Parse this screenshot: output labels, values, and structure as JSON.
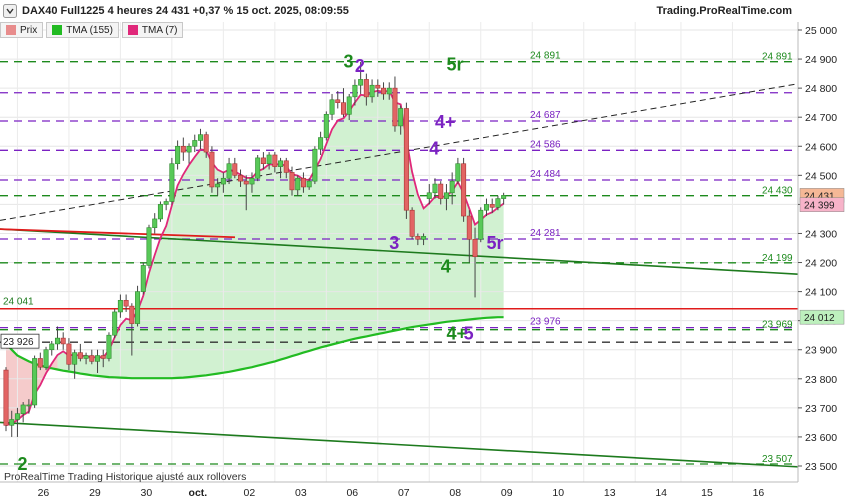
{
  "header": {
    "title": "DAX40 Full1225 4 heures 24 431 +0,37 % 15 oct. 2025, 08:09:55",
    "source": "Trading.ProRealTime.com"
  },
  "legend": [
    {
      "label": "Prix",
      "color": "#e88c8c"
    },
    {
      "label": "TMA (155)",
      "color": "#22bb22"
    },
    {
      "label": "TMA (7)",
      "color": "#e0287a"
    }
  ],
  "footer": "ProRealTime Trading  Historique ajusté aux rollovers",
  "chart_data": {
    "type": "candlestick",
    "ylim": [
      23500,
      25000
    ],
    "y_ticks": [
      "25 000",
      "24 900",
      "24 800",
      "24 700",
      "24 600",
      "24 500",
      "24 400",
      "24 300",
      "24 200",
      "24 100",
      "24 000",
      "23 900",
      "23 800",
      "23 700",
      "23 600",
      "23 500"
    ],
    "x_labels": [
      {
        "label": "26",
        "x": 2
      },
      {
        "label": "29",
        "x": 11
      },
      {
        "label": "30",
        "x": 20
      },
      {
        "label": "oct.",
        "x": 29
      },
      {
        "label": "02",
        "x": 38
      },
      {
        "label": "03",
        "x": 47
      },
      {
        "label": "06",
        "x": 56
      },
      {
        "label": "07",
        "x": 65
      },
      {
        "label": "08",
        "x": 74
      },
      {
        "label": "09",
        "x": 83
      },
      {
        "label": "10",
        "x": 92
      },
      {
        "label": "13",
        "x": 101
      },
      {
        "label": "14",
        "x": 110
      },
      {
        "label": "15",
        "x": 118
      },
      {
        "label": "16",
        "x": 127
      }
    ],
    "candles": [
      {
        "o": 23830,
        "h": 23840,
        "l": 23620,
        "c": 23640
      },
      {
        "o": 23640,
        "h": 23690,
        "l": 23600,
        "c": 23660
      },
      {
        "o": 23660,
        "h": 23700,
        "l": 23600,
        "c": 23680
      },
      {
        "o": 23680,
        "h": 23720,
        "l": 23650,
        "c": 23710
      },
      {
        "o": 23710,
        "h": 23730,
        "l": 23680,
        "c": 23710
      },
      {
        "o": 23710,
        "h": 23880,
        "l": 23700,
        "c": 23870
      },
      {
        "o": 23870,
        "h": 23890,
        "l": 23830,
        "c": 23840
      },
      {
        "o": 23840,
        "h": 23910,
        "l": 23830,
        "c": 23900
      },
      {
        "o": 23900,
        "h": 23930,
        "l": 23880,
        "c": 23920
      },
      {
        "o": 23920,
        "h": 23980,
        "l": 23900,
        "c": 23940
      },
      {
        "o": 23940,
        "h": 23960,
        "l": 23900,
        "c": 23920
      },
      {
        "o": 23920,
        "h": 23940,
        "l": 23830,
        "c": 23850
      },
      {
        "o": 23850,
        "h": 23900,
        "l": 23800,
        "c": 23890
      },
      {
        "o": 23890,
        "h": 23920,
        "l": 23860,
        "c": 23870
      },
      {
        "o": 23870,
        "h": 23890,
        "l": 23850,
        "c": 23880
      },
      {
        "o": 23880,
        "h": 23900,
        "l": 23850,
        "c": 23860
      },
      {
        "o": 23860,
        "h": 23900,
        "l": 23820,
        "c": 23880
      },
      {
        "o": 23880,
        "h": 23900,
        "l": 23840,
        "c": 23870
      },
      {
        "o": 23870,
        "h": 23960,
        "l": 23860,
        "c": 23950
      },
      {
        "o": 23950,
        "h": 24040,
        "l": 23940,
        "c": 24030
      },
      {
        "o": 24030,
        "h": 24090,
        "l": 24010,
        "c": 24070
      },
      {
        "o": 24070,
        "h": 24090,
        "l": 24030,
        "c": 24050
      },
      {
        "o": 24050,
        "h": 24060,
        "l": 23880,
        "c": 23990
      },
      {
        "o": 23990,
        "h": 24120,
        "l": 23980,
        "c": 24100
      },
      {
        "o": 24100,
        "h": 24200,
        "l": 24090,
        "c": 24190
      },
      {
        "o": 24190,
        "h": 24330,
        "l": 24180,
        "c": 24320
      },
      {
        "o": 24320,
        "h": 24370,
        "l": 24300,
        "c": 24350
      },
      {
        "o": 24350,
        "h": 24410,
        "l": 24340,
        "c": 24400
      },
      {
        "o": 24400,
        "h": 24420,
        "l": 24380,
        "c": 24410
      },
      {
        "o": 24410,
        "h": 24560,
        "l": 24400,
        "c": 24540
      },
      {
        "o": 24540,
        "h": 24620,
        "l": 24520,
        "c": 24600
      },
      {
        "o": 24600,
        "h": 24630,
        "l": 24550,
        "c": 24580
      },
      {
        "o": 24580,
        "h": 24610,
        "l": 24540,
        "c": 24600
      },
      {
        "o": 24600,
        "h": 24640,
        "l": 24580,
        "c": 24620
      },
      {
        "o": 24620,
        "h": 24660,
        "l": 24590,
        "c": 24640
      },
      {
        "o": 24640,
        "h": 24650,
        "l": 24560,
        "c": 24580
      },
      {
        "o": 24580,
        "h": 24600,
        "l": 24440,
        "c": 24460
      },
      {
        "o": 24460,
        "h": 24490,
        "l": 24430,
        "c": 24470
      },
      {
        "o": 24470,
        "h": 24510,
        "l": 24440,
        "c": 24490
      },
      {
        "o": 24490,
        "h": 24560,
        "l": 24470,
        "c": 24540
      },
      {
        "o": 24540,
        "h": 24560,
        "l": 24490,
        "c": 24500
      },
      {
        "o": 24500,
        "h": 24520,
        "l": 24460,
        "c": 24480
      },
      {
        "o": 24480,
        "h": 24500,
        "l": 24380,
        "c": 24470
      },
      {
        "o": 24470,
        "h": 24510,
        "l": 24440,
        "c": 24490
      },
      {
        "o": 24490,
        "h": 24570,
        "l": 24480,
        "c": 24560
      },
      {
        "o": 24560,
        "h": 24580,
        "l": 24520,
        "c": 24540
      },
      {
        "o": 24540,
        "h": 24580,
        "l": 24520,
        "c": 24570
      },
      {
        "o": 24570,
        "h": 24580,
        "l": 24510,
        "c": 24530
      },
      {
        "o": 24530,
        "h": 24560,
        "l": 24490,
        "c": 24550
      },
      {
        "o": 24550,
        "h": 24560,
        "l": 24490,
        "c": 24510
      },
      {
        "o": 24510,
        "h": 24530,
        "l": 24430,
        "c": 24450
      },
      {
        "o": 24450,
        "h": 24500,
        "l": 24430,
        "c": 24490
      },
      {
        "o": 24490,
        "h": 24510,
        "l": 24440,
        "c": 24460
      },
      {
        "o": 24460,
        "h": 24490,
        "l": 24450,
        "c": 24480
      },
      {
        "o": 24480,
        "h": 24600,
        "l": 24470,
        "c": 24590
      },
      {
        "o": 24590,
        "h": 24650,
        "l": 24570,
        "c": 24630
      },
      {
        "o": 24630,
        "h": 24720,
        "l": 24620,
        "c": 24710
      },
      {
        "o": 24710,
        "h": 24780,
        "l": 24690,
        "c": 24760
      },
      {
        "o": 24760,
        "h": 24790,
        "l": 24730,
        "c": 24750
      },
      {
        "o": 24750,
        "h": 24800,
        "l": 24700,
        "c": 24710
      },
      {
        "o": 24710,
        "h": 24780,
        "l": 24690,
        "c": 24770
      },
      {
        "o": 24770,
        "h": 24830,
        "l": 24740,
        "c": 24810
      },
      {
        "o": 24810,
        "h": 24890,
        "l": 24780,
        "c": 24830
      },
      {
        "o": 24830,
        "h": 24850,
        "l": 24740,
        "c": 24770
      },
      {
        "o": 24770,
        "h": 24830,
        "l": 24750,
        "c": 24810
      },
      {
        "o": 24810,
        "h": 24830,
        "l": 24770,
        "c": 24800
      },
      {
        "o": 24800,
        "h": 24820,
        "l": 24760,
        "c": 24780
      },
      {
        "o": 24780,
        "h": 24820,
        "l": 24760,
        "c": 24800
      },
      {
        "o": 24800,
        "h": 24840,
        "l": 24650,
        "c": 24670
      },
      {
        "o": 24670,
        "h": 24740,
        "l": 24640,
        "c": 24730
      },
      {
        "o": 24730,
        "h": 24750,
        "l": 24350,
        "c": 24380
      },
      {
        "o": 24380,
        "h": 24390,
        "l": 24280,
        "c": 24290
      },
      {
        "o": 24290,
        "h": 24300,
        "l": 24260,
        "c": 24280
      },
      {
        "o": 24280,
        "h": 24300,
        "l": 24260,
        "c": 24290
      },
      {
        "o": 24420,
        "h": 24470,
        "l": 24400,
        "c": 24440
      },
      {
        "o": 24440,
        "h": 24490,
        "l": 24420,
        "c": 24470
      },
      {
        "o": 24470,
        "h": 24480,
        "l": 24400,
        "c": 24420
      },
      {
        "o": 24420,
        "h": 24470,
        "l": 24380,
        "c": 24440
      },
      {
        "o": 24440,
        "h": 24510,
        "l": 24400,
        "c": 24480
      },
      {
        "o": 24480,
        "h": 24560,
        "l": 24470,
        "c": 24540
      },
      {
        "o": 24540,
        "h": 24560,
        "l": 24340,
        "c": 24360
      },
      {
        "o": 24360,
        "h": 24380,
        "l": 24200,
        "c": 24280
      },
      {
        "o": 24280,
        "h": 24320,
        "l": 24080,
        "c": 24220
      },
      {
        "o": 24280,
        "h": 24390,
        "l": 24270,
        "c": 24380
      },
      {
        "o": 24380,
        "h": 24420,
        "l": 24360,
        "c": 24400
      },
      {
        "o": 24400,
        "h": 24420,
        "l": 24370,
        "c": 24390
      },
      {
        "o": 24390,
        "h": 24430,
        "l": 24380,
        "c": 24420
      },
      {
        "o": 24420,
        "h": 24440,
        "l": 24400,
        "c": 24431
      }
    ],
    "horizontal_levels": [
      {
        "value": 24891,
        "color": "#1d8a1d",
        "right_label": "24 891",
        "right_color": "#1d8a1d",
        "mid_label": "24 891"
      },
      {
        "value": 24784,
        "color": "#7b22c2"
      },
      {
        "value": 24687,
        "color": "#7b22c2",
        "mid_label": "24 687"
      },
      {
        "value": 24586,
        "color": "#7b22c2",
        "mid_label": "24 586"
      },
      {
        "value": 24484,
        "color": "#7b22c2",
        "mid_label": "24 484"
      },
      {
        "value": 24430,
        "color": "#1d8a1d",
        "right_label": "24 430",
        "right_color": "#1d8a1d"
      },
      {
        "value": 24281,
        "color": "#7b22c2",
        "mid_label": "24 281"
      },
      {
        "value": 24199,
        "color": "#1d8a1d",
        "right_label": "24 199",
        "right_color": "#1d8a1d"
      },
      {
        "value": 23976,
        "color": "#7b22c2",
        "mid_label": "23 976"
      },
      {
        "value": 23969,
        "color": "#1d8a1d",
        "right_label": "23 969",
        "right_color": "#1d8a1d"
      },
      {
        "value": 23926,
        "color": "#333333"
      },
      {
        "value": 23507,
        "color": "#1d8a1d",
        "right_label": "23 507",
        "right_color": "#1d8a1d"
      }
    ],
    "support_line_red": 24041,
    "left_labels": [
      "24 041",
      "23 926"
    ],
    "price_tags": [
      {
        "label": "24 431",
        "value": 24431,
        "bg": "#f5b896"
      },
      {
        "label": "24 399",
        "value": 24399,
        "bg": "#f7b3c9"
      },
      {
        "label": "24 012",
        "value": 24012,
        "bg": "#bdf0bd"
      }
    ],
    "wave_labels": [
      {
        "text": "3",
        "x": 59,
        "y": 24895,
        "color": "#1d8a1d"
      },
      {
        "text": "2",
        "x": 61,
        "y": 24880,
        "color": "#7b22c2"
      },
      {
        "text": "5r",
        "x": 77,
        "y": 24885,
        "color": "#1d8a1d"
      },
      {
        "text": "4+",
        "x": 75,
        "y": 24687,
        "color": "#7b22c2"
      },
      {
        "text": "4",
        "x": 74,
        "y": 24595,
        "color": "#7b22c2"
      },
      {
        "text": "3",
        "x": 67,
        "y": 24270,
        "color": "#7b22c2"
      },
      {
        "text": "5r",
        "x": 84,
        "y": 24270,
        "color": "#7b22c2"
      },
      {
        "text": "4",
        "x": 76,
        "y": 24190,
        "color": "#1d8a1d"
      },
      {
        "text": "4+",
        "x": 77,
        "y": 23960,
        "color": "#1d8a1d"
      },
      {
        "text": "5",
        "x": 80,
        "y": 23960,
        "color": "#7b22c2"
      },
      {
        "text": "2",
        "x": 2,
        "y": 23510,
        "color": "#1d8a1d"
      }
    ]
  }
}
